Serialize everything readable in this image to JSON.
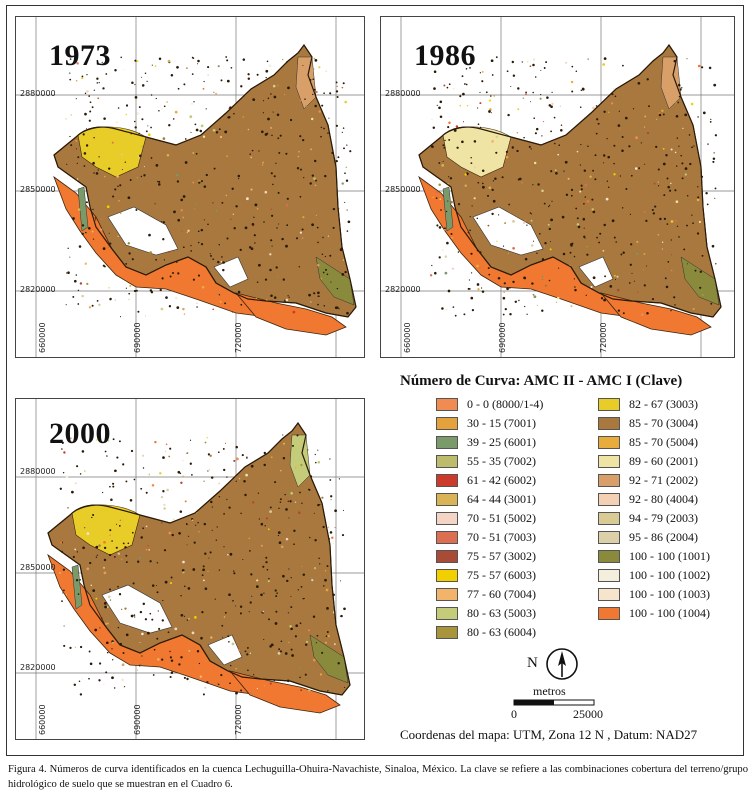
{
  "panels": [
    {
      "year": "1973",
      "northings": [
        "2880000",
        "2850000",
        "2820000"
      ],
      "eastings": [
        "660000",
        "690000",
        "720000"
      ]
    },
    {
      "year": "1986",
      "northings": [
        "2880000",
        "2850000",
        "2820000"
      ],
      "eastings": [
        "660000",
        "690000",
        "720000"
      ]
    },
    {
      "year": "2000",
      "northings": [
        "2880000",
        "2850000",
        "2820000"
      ],
      "eastings": [
        "660000",
        "690000",
        "720000"
      ]
    }
  ],
  "legend": {
    "title": "Número de Curva:  AMC II - AMC I (Clave)",
    "items": [
      {
        "label": "0 - 0 (8000/1-4)",
        "color": "#f08c52"
      },
      {
        "label": "30 - 15 (7001)",
        "color": "#e4a23c"
      },
      {
        "label": "39 - 25 (6001)",
        "color": "#7a9a6a"
      },
      {
        "label": "55 - 35 (7002)",
        "color": "#bcbc6c"
      },
      {
        "label": "61 - 42 (6002)",
        "color": "#cc3a2c"
      },
      {
        "label": "64 - 44 (3001)",
        "color": "#d8b456"
      },
      {
        "label": "70 - 51 (5002)",
        "color": "#f4d4c4"
      },
      {
        "label": "70 - 51 (7003)",
        "color": "#dc6e52"
      },
      {
        "label": "75 - 57 (3002)",
        "color": "#a84c38"
      },
      {
        "label": "75 - 57 (6003)",
        "color": "#f2d000"
      },
      {
        "label": "77 - 60 (7004)",
        "color": "#f2b46a"
      },
      {
        "label": "80 - 63 (5003)",
        "color": "#c4cc7a"
      },
      {
        "label": "80 - 63 (6004)",
        "color": "#a8943a"
      },
      {
        "label": "82 - 67 (3003)",
        "color": "#e8cc28"
      },
      {
        "label": "85 - 70 (3004)",
        "color": "#a8783e"
      },
      {
        "label": "85 - 70 (5004)",
        "color": "#e8ac3c"
      },
      {
        "label": "89 - 60 (2001)",
        "color": "#f0e4a4"
      },
      {
        "label": "92 - 71 (2002)",
        "color": "#d8a068"
      },
      {
        "label": "92 - 80 (4004)",
        "color": "#f4d0b4"
      },
      {
        "label": "94 - 79 (2003)",
        "color": "#d8cc94"
      },
      {
        "label": "95 - 86 (2004)",
        "color": "#dcd0a8"
      },
      {
        "label": "100 - 100 (1001)",
        "color": "#8a8a3c"
      },
      {
        "label": "100 - 100 (1002)",
        "color": "#f4eedc"
      },
      {
        "label": "100 - 100 (1003)",
        "color": "#f6e4cc"
      },
      {
        "label": "100 - 100 (1004)",
        "color": "#f07830"
      }
    ]
  },
  "north_label": "N",
  "scale": {
    "unit": "metros",
    "left": "0",
    "right": "25000"
  },
  "map_coordinates": "Coordenas del mapa: UTM, Zona  12 N , Datum: NAD27",
  "caption": "Figura 4.  Números de curva identificados en la cuenca Lechuguilla-Ohuira-Navachiste, Sinaloa, México. La clave se refiere a las combinaciones cobertura del terreno/grupo hidrológico de suelo que se muestran en el Cuadro 6."
}
